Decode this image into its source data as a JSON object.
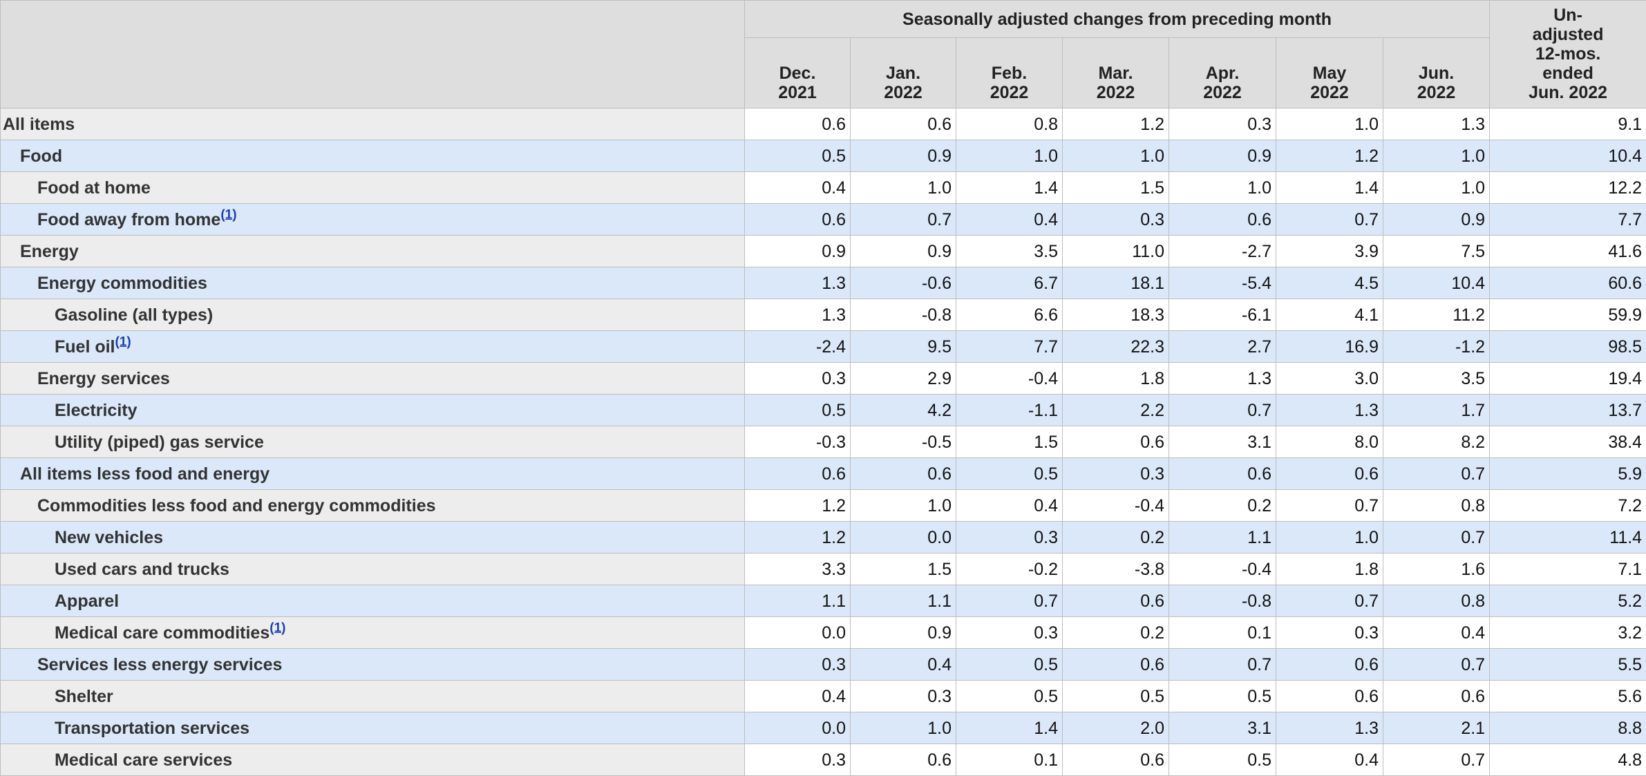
{
  "header": {
    "group_label": "Seasonally adjusted changes from preceding month",
    "months": [
      {
        "line1": "Dec.",
        "line2": "2021"
      },
      {
        "line1": "Jan.",
        "line2": "2022"
      },
      {
        "line1": "Feb.",
        "line2": "2022"
      },
      {
        "line1": "Mar.",
        "line2": "2022"
      },
      {
        "line1": "Apr.",
        "line2": "2022"
      },
      {
        "line1": "May",
        "line2": "2022"
      },
      {
        "line1": "Jun.",
        "line2": "2022"
      }
    ],
    "unadjusted": [
      "Un-",
      "adjusted",
      "12-mos.",
      "ended",
      "Jun. 2022"
    ]
  },
  "rows": [
    {
      "label": "All items",
      "indent": 0,
      "footnote": "",
      "values": [
        "0.6",
        "0.6",
        "0.8",
        "1.2",
        "0.3",
        "1.0",
        "1.3",
        "9.1"
      ]
    },
    {
      "label": "Food",
      "indent": 1,
      "footnote": "",
      "values": [
        "0.5",
        "0.9",
        "1.0",
        "1.0",
        "0.9",
        "1.2",
        "1.0",
        "10.4"
      ]
    },
    {
      "label": "Food at home",
      "indent": 2,
      "footnote": "",
      "values": [
        "0.4",
        "1.0",
        "1.4",
        "1.5",
        "1.0",
        "1.4",
        "1.0",
        "12.2"
      ]
    },
    {
      "label": "Food away from home",
      "indent": 2,
      "footnote": "1",
      "values": [
        "0.6",
        "0.7",
        "0.4",
        "0.3",
        "0.6",
        "0.7",
        "0.9",
        "7.7"
      ]
    },
    {
      "label": "Energy",
      "indent": 1,
      "footnote": "",
      "values": [
        "0.9",
        "0.9",
        "3.5",
        "11.0",
        "-2.7",
        "3.9",
        "7.5",
        "41.6"
      ]
    },
    {
      "label": "Energy commodities",
      "indent": 2,
      "footnote": "",
      "values": [
        "1.3",
        "-0.6",
        "6.7",
        "18.1",
        "-5.4",
        "4.5",
        "10.4",
        "60.6"
      ]
    },
    {
      "label": "Gasoline (all types)",
      "indent": 3,
      "footnote": "",
      "values": [
        "1.3",
        "-0.8",
        "6.6",
        "18.3",
        "-6.1",
        "4.1",
        "11.2",
        "59.9"
      ]
    },
    {
      "label": "Fuel oil",
      "indent": 3,
      "footnote": "1",
      "values": [
        "-2.4",
        "9.5",
        "7.7",
        "22.3",
        "2.7",
        "16.9",
        "-1.2",
        "98.5"
      ]
    },
    {
      "label": "Energy services",
      "indent": 2,
      "footnote": "",
      "values": [
        "0.3",
        "2.9",
        "-0.4",
        "1.8",
        "1.3",
        "3.0",
        "3.5",
        "19.4"
      ]
    },
    {
      "label": "Electricity",
      "indent": 3,
      "footnote": "",
      "values": [
        "0.5",
        "4.2",
        "-1.1",
        "2.2",
        "0.7",
        "1.3",
        "1.7",
        "13.7"
      ]
    },
    {
      "label": "Utility (piped) gas service",
      "indent": 3,
      "footnote": "",
      "values": [
        "-0.3",
        "-0.5",
        "1.5",
        "0.6",
        "3.1",
        "8.0",
        "8.2",
        "38.4"
      ]
    },
    {
      "label": "All items less food and energy",
      "indent": 1,
      "footnote": "",
      "values": [
        "0.6",
        "0.6",
        "0.5",
        "0.3",
        "0.6",
        "0.6",
        "0.7",
        "5.9"
      ]
    },
    {
      "label": "Commodities less food and energy commodities",
      "indent": 2,
      "footnote": "",
      "values": [
        "1.2",
        "1.0",
        "0.4",
        "-0.4",
        "0.2",
        "0.7",
        "0.8",
        "7.2"
      ]
    },
    {
      "label": "New vehicles",
      "indent": 3,
      "footnote": "",
      "values": [
        "1.2",
        "0.0",
        "0.3",
        "0.2",
        "1.1",
        "1.0",
        "0.7",
        "11.4"
      ]
    },
    {
      "label": "Used cars and trucks",
      "indent": 3,
      "footnote": "",
      "values": [
        "3.3",
        "1.5",
        "-0.2",
        "-3.8",
        "-0.4",
        "1.8",
        "1.6",
        "7.1"
      ]
    },
    {
      "label": "Apparel",
      "indent": 3,
      "footnote": "",
      "values": [
        "1.1",
        "1.1",
        "0.7",
        "0.6",
        "-0.8",
        "0.7",
        "0.8",
        "5.2"
      ]
    },
    {
      "label": "Medical care commodities",
      "indent": 3,
      "footnote": "1",
      "values": [
        "0.0",
        "0.9",
        "0.3",
        "0.2",
        "0.1",
        "0.3",
        "0.4",
        "3.2"
      ]
    },
    {
      "label": "Services less energy services",
      "indent": 2,
      "footnote": "",
      "values": [
        "0.3",
        "0.4",
        "0.5",
        "0.6",
        "0.7",
        "0.6",
        "0.7",
        "5.5"
      ]
    },
    {
      "label": "Shelter",
      "indent": 3,
      "footnote": "",
      "values": [
        "0.4",
        "0.3",
        "0.5",
        "0.5",
        "0.5",
        "0.6",
        "0.6",
        "5.6"
      ]
    },
    {
      "label": "Transportation services",
      "indent": 3,
      "footnote": "",
      "values": [
        "0.0",
        "1.0",
        "1.4",
        "2.0",
        "3.1",
        "1.3",
        "2.1",
        "8.8"
      ]
    },
    {
      "label": "Medical care services",
      "indent": 3,
      "footnote": "",
      "values": [
        "0.3",
        "0.6",
        "0.1",
        "0.6",
        "0.5",
        "0.4",
        "0.7",
        "4.8"
      ]
    }
  ]
}
